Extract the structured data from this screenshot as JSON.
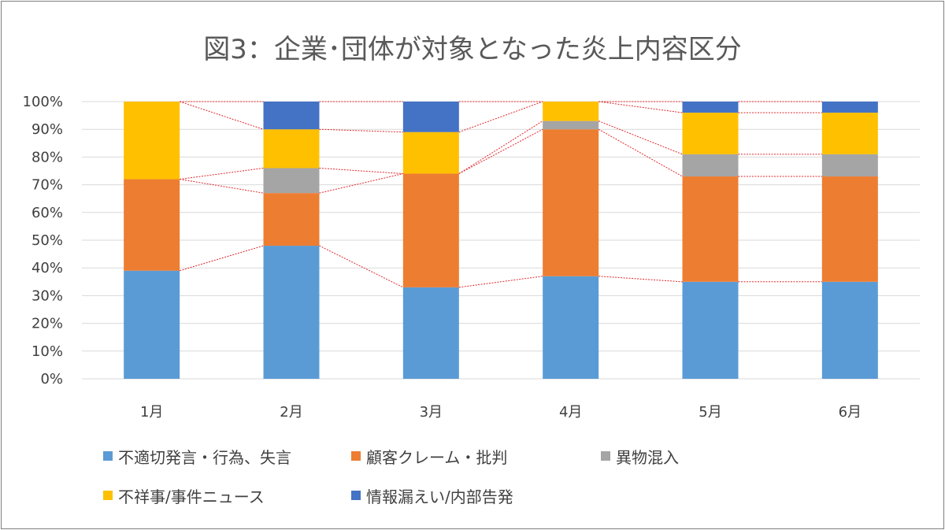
{
  "chart_data": {
    "type": "bar",
    "stacked": true,
    "title": "図3：企業･団体が対象となった炎上内容区分",
    "categories": [
      "1月",
      "2月",
      "3月",
      "4月",
      "5月",
      "6月"
    ],
    "y_ticks": [
      "0%",
      "10%",
      "20%",
      "30%",
      "40%",
      "50%",
      "60%",
      "70%",
      "80%",
      "90%",
      "100%"
    ],
    "ylim": [
      0,
      100
    ],
    "grid": true,
    "series_lines": true,
    "series": [
      {
        "name": "不適切発言・行為、失言",
        "color": "#5b9bd5",
        "values": [
          39,
          48,
          33,
          37,
          35,
          35
        ]
      },
      {
        "name": "顧客クレーム・批判",
        "color": "#ed7d31",
        "values": [
          33,
          19,
          41,
          53,
          38,
          38
        ]
      },
      {
        "name": "異物混入",
        "color": "#a5a5a5",
        "values": [
          0,
          9,
          0,
          3,
          8,
          8
        ]
      },
      {
        "name": "不祥事/事件ニュース",
        "color": "#ffc000",
        "values": [
          28,
          14,
          15,
          7,
          15,
          15
        ]
      },
      {
        "name": "情報漏えい/内部告発",
        "color": "#4472c4",
        "values": [
          0,
          10,
          11,
          0,
          4,
          4
        ]
      }
    ],
    "legend_position": "bottom"
  },
  "colors": {
    "grid": "#d9d9d9",
    "series_line": "#e0282e",
    "border": "#7f7f7f"
  }
}
